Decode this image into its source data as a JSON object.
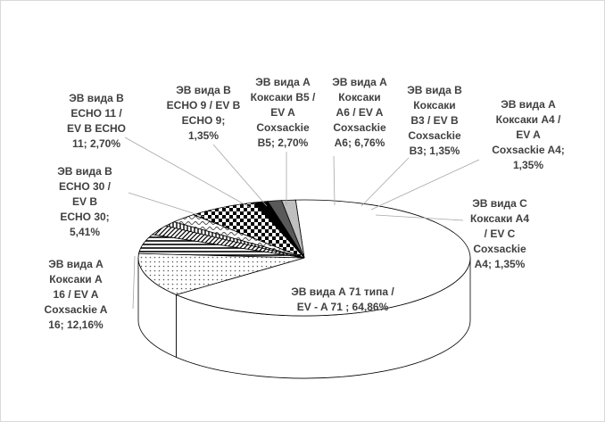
{
  "chart_data": {
    "type": "pie",
    "title": "",
    "series": [
      {
        "label": "ЭВ вида А 71 типа /\nEV - A 71 ; 64,86%",
        "value": 64.86,
        "pattern": "white"
      },
      {
        "label": "ЭВ вида А\nКоксаки А\n16 / EV A\nCoxsackie A\n16; 12,16%",
        "value": 12.16,
        "pattern": "dots"
      },
      {
        "label": "ЭВ вида В\nECHO 30 /\nEV B\nECHO 30;\n5,41%",
        "value": 5.41,
        "pattern": "hlines"
      },
      {
        "label": "ЭВ вида В\nECHO 11 /\nEV B ECHO\n11; 2,70%",
        "value": 2.7,
        "pattern": "diag"
      },
      {
        "label": "ЭВ вида В\nECHO 9 / EV B\nECHO 9;\n1,35%",
        "value": 1.35,
        "pattern": "vlines"
      },
      {
        "label": "ЭВ вида А\nКоксаки В5 /\nEV A\nCoxsackie\nB5; 2,70%",
        "value": 2.7,
        "pattern": "wave"
      },
      {
        "label": "ЭВ вида А\nКоксаки\nА6 / EV A\nCoxsackie\nA6; 6,76%",
        "value": 6.76,
        "pattern": "checker"
      },
      {
        "label": "ЭВ вида В\nКоксаки\nВ3 / EV B\nCoxsackie\nB3; 1,35%",
        "value": 1.35,
        "pattern": "black"
      },
      {
        "label": "ЭВ вида А\nКоксаки А4 /\nEV  A\nCoxsackie A4;\n1,35%",
        "value": 1.35,
        "pattern": "darkgray"
      },
      {
        "label": "ЭВ вида С\nКоксаки А4\n/ EV C\nCoxsackie\nA4; 1,35%",
        "value": 1.35,
        "pattern": "lightgray"
      }
    ]
  }
}
